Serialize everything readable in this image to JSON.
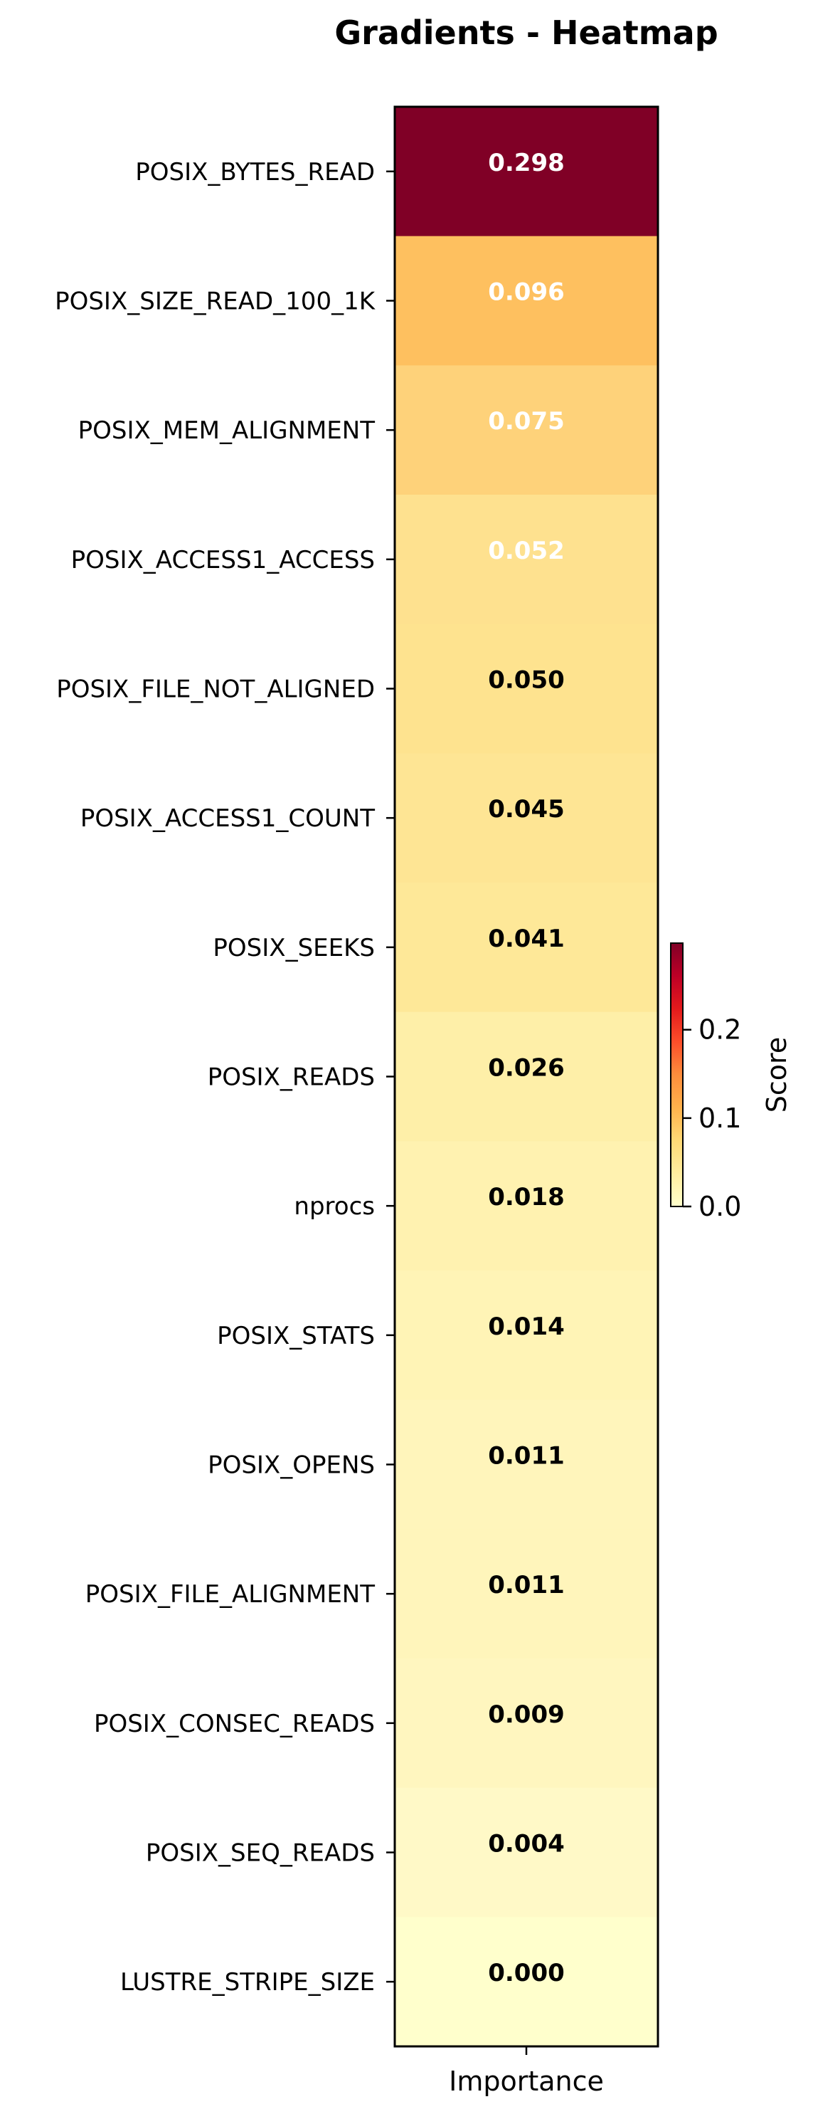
{
  "chart_data": {
    "type": "heatmap",
    "title": "Gradients - Heatmap",
    "x_categories": [
      "Importance"
    ],
    "y_categories": [
      "POSIX_BYTES_READ",
      "POSIX_SIZE_READ_100_1K",
      "POSIX_MEM_ALIGNMENT",
      "POSIX_ACCESS1_ACCESS",
      "POSIX_FILE_NOT_ALIGNED",
      "POSIX_ACCESS1_COUNT",
      "POSIX_SEEKS",
      "POSIX_READS",
      "nprocs",
      "POSIX_STATS",
      "POSIX_OPENS",
      "POSIX_FILE_ALIGNMENT",
      "POSIX_CONSEC_READS",
      "POSIX_SEQ_READS",
      "LUSTRE_STRIPE_SIZE"
    ],
    "values": [
      0.298,
      0.096,
      0.075,
      0.052,
      0.05,
      0.045,
      0.041,
      0.026,
      0.018,
      0.014,
      0.011,
      0.011,
      0.009,
      0.004,
      0.0
    ],
    "value_labels": [
      "0.298",
      "0.096",
      "0.075",
      "0.052",
      "0.050",
      "0.045",
      "0.041",
      "0.026",
      "0.018",
      "0.014",
      "0.011",
      "0.011",
      "0.009",
      "0.004",
      "0.000"
    ],
    "colormap": "YlOrRd",
    "colorbar": {
      "label": "Score",
      "range": [
        0,
        0.298
      ],
      "ticks": [
        0.0,
        0.1,
        0.2
      ],
      "tick_labels": [
        "0.0",
        "0.1",
        "0.2"
      ]
    },
    "label_colors": {
      "light": "#ffffff",
      "dark": "#000000"
    },
    "colors": {
      "cells": [
        "#800026",
        "#fec05f",
        "#fed27a",
        "#fee18f",
        "#fee38f",
        "#fee594",
        "#fee898",
        "#feefa8",
        "#fff2b0",
        "#fff4b6",
        "#fff5bb",
        "#fff5bb",
        "#fff6bf",
        "#fff9c7",
        "#ffffcc"
      ],
      "frame": "#000000"
    }
  }
}
